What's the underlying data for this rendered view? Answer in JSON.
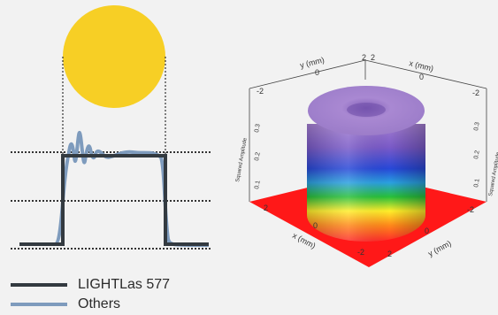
{
  "colors": {
    "background": "#f2f2f2",
    "spot": "#f7cf25",
    "lightlas_line": "#333a40",
    "others_line": "#7e9bbd",
    "dotted": "#333333"
  },
  "legend": {
    "items": [
      {
        "label": "LIGHTLas 577",
        "color": "#333a40"
      },
      {
        "label": "Others",
        "color": "#7e9bbd"
      }
    ]
  },
  "plot3d": {
    "y_axis_label": "y (mm)",
    "x_axis_label": "x (mm)",
    "z_axis_label": "Squared Amplitude",
    "top_left_ticks": [
      "2",
      "0",
      "-2"
    ],
    "top_right_ticks": [
      "2",
      "0",
      "-2"
    ],
    "top_corner_tick": "2",
    "z_ticks_left": [
      "0.3",
      "0.2",
      "0.1"
    ],
    "z_ticks_right": [
      "0.3",
      "0.2",
      "0.1"
    ],
    "bottom_left_ticks": [
      "2",
      "0",
      "-2"
    ],
    "bottom_right_ticks": [
      "2",
      "0",
      "-2"
    ],
    "colormap": [
      "#ff0000",
      "#ff8c00",
      "#ffff00",
      "#00c000",
      "#1e50ff",
      "#9b59b6"
    ]
  }
}
